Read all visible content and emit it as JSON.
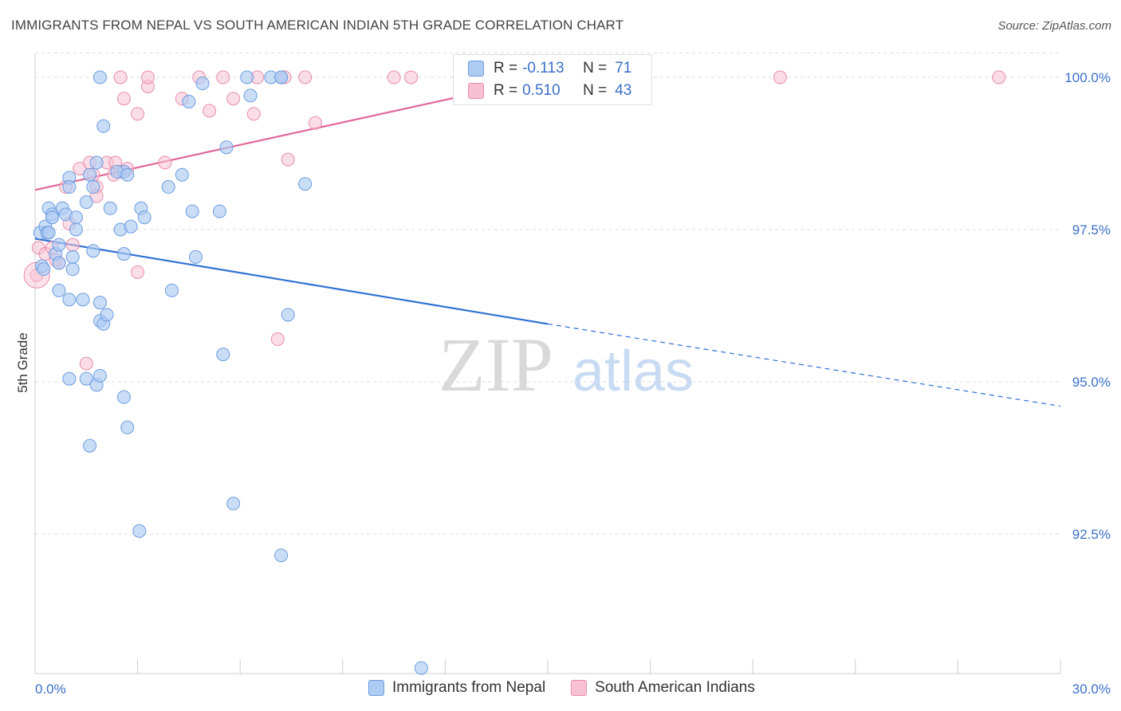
{
  "header": {
    "title": "IMMIGRANTS FROM NEPAL VS SOUTH AMERICAN INDIAN 5TH GRADE CORRELATION CHART",
    "source": "Source: ZipAtlas.com"
  },
  "watermark": {
    "zip": "ZIP",
    "atlas": "atlas"
  },
  "legend": {
    "r_label": "R =",
    "n_label": "N =",
    "rows": [
      {
        "r": "-0.113",
        "n": "71"
      },
      {
        "r": "0.510",
        "n": "43"
      }
    ]
  },
  "bottom_legend": [
    "Immigrants from Nepal",
    "South American Indians"
  ],
  "chart_data": {
    "type": "scatter",
    "title": "IMMIGRANTS FROM NEPAL VS SOUTH AMERICAN INDIAN 5TH GRADE CORRELATION CHART",
    "xlabel": "",
    "ylabel": "5th Grade",
    "xlim": [
      0,
      30
    ],
    "ylim": [
      90.0,
      100.4
    ],
    "x_tick_labels": [
      "0.0%",
      "30.0%"
    ],
    "y_ticks": [
      100.0,
      97.5,
      95.0,
      92.5
    ],
    "y_tick_labels": [
      "100.0%",
      "97.5%",
      "95.0%",
      "92.5%"
    ],
    "grid": true,
    "legend_position": "top-center",
    "colors": {
      "nepal": "#6b9de0",
      "nepal_fill": "#aecbf2",
      "sai": "#e98cab",
      "sai_fill": "#f8c1d3",
      "nepal_trend": "#2f6fd4",
      "sai_trend": "#e0679a"
    },
    "series": [
      {
        "name": "Immigrants from Nepal",
        "points": [
          [
            0.15,
            97.45
          ],
          [
            0.3,
            97.55
          ],
          [
            0.4,
            97.85
          ],
          [
            0.5,
            97.75
          ],
          [
            0.35,
            97.45
          ],
          [
            0.2,
            96.9
          ],
          [
            0.5,
            97.7
          ],
          [
            0.8,
            97.85
          ],
          [
            0.9,
            97.75
          ],
          [
            1.0,
            98.35
          ],
          [
            1.0,
            98.2
          ],
          [
            1.2,
            97.7
          ],
          [
            1.2,
            97.5
          ],
          [
            0.6,
            97.1
          ],
          [
            0.7,
            97.25
          ],
          [
            0.7,
            96.95
          ],
          [
            1.1,
            96.85
          ],
          [
            1.1,
            97.05
          ],
          [
            0.7,
            96.5
          ],
          [
            1.0,
            96.35
          ],
          [
            1.4,
            96.35
          ],
          [
            1.5,
            95.05
          ],
          [
            1.8,
            94.95
          ],
          [
            1.0,
            95.05
          ],
          [
            1.6,
            98.4
          ],
          [
            1.8,
            98.6
          ],
          [
            1.7,
            98.2
          ],
          [
            1.5,
            97.95
          ],
          [
            2.2,
            97.85
          ],
          [
            1.7,
            97.15
          ],
          [
            1.9,
            96.3
          ],
          [
            1.9,
            96.0
          ],
          [
            2.0,
            95.95
          ],
          [
            2.1,
            96.1
          ],
          [
            1.9,
            95.1
          ],
          [
            2.6,
            98.45
          ],
          [
            2.4,
            98.45
          ],
          [
            2.7,
            98.4
          ],
          [
            2.5,
            97.5
          ],
          [
            2.6,
            97.1
          ],
          [
            2.8,
            97.55
          ],
          [
            3.1,
            97.85
          ],
          [
            3.2,
            97.7
          ],
          [
            2.6,
            94.75
          ],
          [
            2.7,
            94.25
          ],
          [
            1.6,
            93.95
          ],
          [
            3.05,
            92.55
          ],
          [
            4.3,
            98.4
          ],
          [
            3.9,
            98.2
          ],
          [
            4.0,
            96.5
          ],
          [
            4.6,
            97.8
          ],
          [
            4.7,
            97.05
          ],
          [
            5.4,
            97.8
          ],
          [
            5.6,
            98.85
          ],
          [
            5.5,
            95.45
          ],
          [
            5.8,
            93.0
          ],
          [
            6.3,
            99.7
          ],
          [
            7.4,
            96.1
          ],
          [
            7.9,
            98.25
          ],
          [
            6.2,
            100.0
          ],
          [
            6.9,
            100.0
          ],
          [
            7.2,
            100.0
          ],
          [
            7.2,
            100.0
          ],
          [
            4.5,
            99.6
          ],
          [
            4.9,
            99.9
          ],
          [
            2.0,
            99.2
          ],
          [
            7.2,
            92.15
          ],
          [
            11.3,
            90.3
          ],
          [
            1.9,
            100.0
          ],
          [
            0.25,
            96.85
          ],
          [
            0.4,
            97.45
          ]
        ]
      },
      {
        "name": "South American Indians",
        "points": [
          [
            0.05,
            96.75
          ],
          [
            0.1,
            97.2
          ],
          [
            0.3,
            97.1
          ],
          [
            0.5,
            97.2
          ],
          [
            0.6,
            97.0
          ],
          [
            0.7,
            96.95
          ],
          [
            0.9,
            98.2
          ],
          [
            1.0,
            97.6
          ],
          [
            1.1,
            97.25
          ],
          [
            1.3,
            98.5
          ],
          [
            1.6,
            98.6
          ],
          [
            1.7,
            98.4
          ],
          [
            1.8,
            98.2
          ],
          [
            1.8,
            98.05
          ],
          [
            2.1,
            98.6
          ],
          [
            2.3,
            98.4
          ],
          [
            2.35,
            98.6
          ],
          [
            2.5,
            98.45
          ],
          [
            2.7,
            98.5
          ],
          [
            3.0,
            96.8
          ],
          [
            3.0,
            99.4
          ],
          [
            3.3,
            99.85
          ],
          [
            2.6,
            99.65
          ],
          [
            3.8,
            98.6
          ],
          [
            4.3,
            99.65
          ],
          [
            5.1,
            99.45
          ],
          [
            5.8,
            99.65
          ],
          [
            6.4,
            99.4
          ],
          [
            7.4,
            98.65
          ],
          [
            8.2,
            99.25
          ],
          [
            7.1,
            95.7
          ],
          [
            1.5,
            95.3
          ],
          [
            2.5,
            100.0
          ],
          [
            3.3,
            100.0
          ],
          [
            4.8,
            100.0
          ],
          [
            5.5,
            100.0
          ],
          [
            6.5,
            100.0
          ],
          [
            7.3,
            100.0
          ],
          [
            7.9,
            100.0
          ],
          [
            10.5,
            100.0
          ],
          [
            11.0,
            100.0
          ],
          [
            21.8,
            100.0
          ],
          [
            28.2,
            100.0
          ]
        ]
      }
    ],
    "trend_lines": [
      {
        "series": "Immigrants from Nepal",
        "x0": 0,
        "y0": 97.35,
        "x1": 15,
        "y1": 95.95,
        "dashed_to_x": 30,
        "dashed_to_y": 94.6
      },
      {
        "series": "South American Indians",
        "x0": 0,
        "y0": 98.15,
        "x1": 15,
        "y1": 100.0
      }
    ]
  }
}
